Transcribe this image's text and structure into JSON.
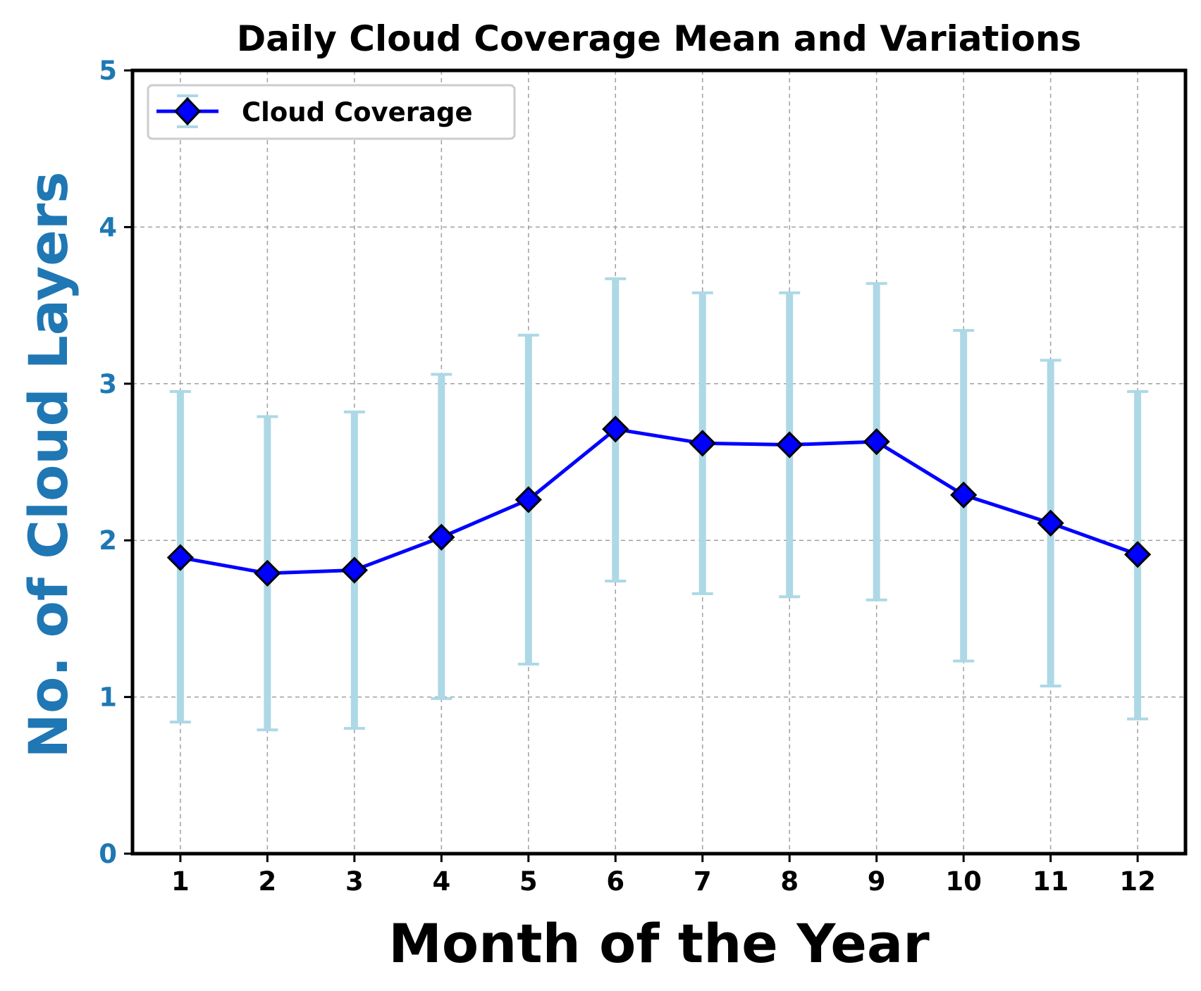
{
  "chart_data": {
    "type": "line",
    "title": "Daily Cloud Coverage Mean and Variations",
    "xlabel": "Month of the Year",
    "ylabel": "No. of Cloud Layers",
    "categories": [
      "1",
      "2",
      "3",
      "4",
      "5",
      "6",
      "7",
      "8",
      "9",
      "10",
      "11",
      "12"
    ],
    "xlim": [
      0.45,
      12.55
    ],
    "ylim": [
      0,
      5
    ],
    "y_ticks": [
      "0",
      "1",
      "2",
      "3",
      "4",
      "5"
    ],
    "grid": true,
    "legend_position": "top-left",
    "series": [
      {
        "name": "Cloud Coverage",
        "x": [
          1,
          2,
          3,
          4,
          5,
          6,
          7,
          8,
          9,
          10,
          11,
          12
        ],
        "values": [
          1.89,
          1.79,
          1.81,
          2.02,
          2.26,
          2.71,
          2.62,
          2.61,
          2.63,
          2.29,
          2.11,
          1.91
        ],
        "error_low": [
          0.84,
          0.79,
          0.8,
          0.99,
          1.21,
          1.74,
          1.66,
          1.64,
          1.62,
          1.23,
          1.07,
          0.86
        ],
        "error_high": [
          2.95,
          2.79,
          2.82,
          3.06,
          3.31,
          3.67,
          3.58,
          3.58,
          3.64,
          3.34,
          3.15,
          2.95
        ]
      }
    ],
    "colors": {
      "line": "#0000ff",
      "marker_fill": "#0000ff",
      "marker_edge": "#000000",
      "error_bar": "#add8e6",
      "ylabel": "#1f77b4",
      "ytick": "#1f77b4",
      "xtick": "#000000",
      "grid": "#a0a0a0",
      "axes": "#000000"
    }
  }
}
